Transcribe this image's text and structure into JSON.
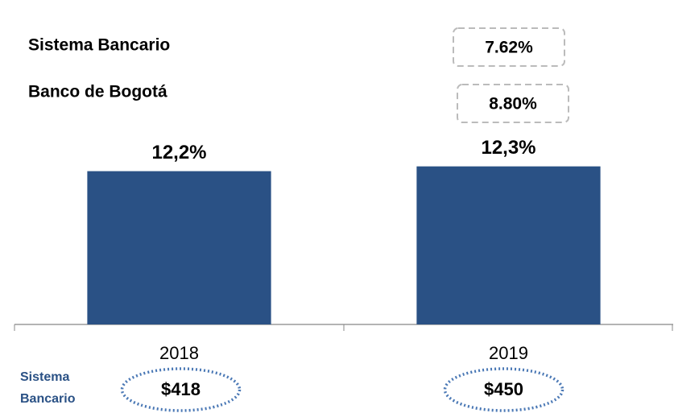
{
  "chart_data": {
    "type": "bar",
    "categories": [
      "2018",
      "2019"
    ],
    "values": [
      12.2,
      12.3
    ],
    "value_labels": [
      "12,2%",
      "12,3%"
    ],
    "color": "#2a5185",
    "ylim": [
      9,
      13
    ],
    "comparison_rows": [
      {
        "label": "Sistema Bancario",
        "value": "7.62%"
      },
      {
        "label": "Banco de Bogotá",
        "value": "8.80%"
      }
    ],
    "footer": {
      "label_lines": [
        "Sistema",
        "Bancario"
      ],
      "values": [
        "$418",
        "$450"
      ]
    }
  }
}
